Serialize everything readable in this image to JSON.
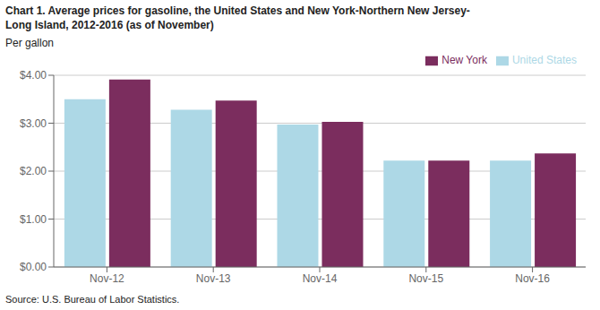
{
  "chart_data": {
    "type": "bar",
    "title": "Chart 1. Average prices for gasoline, the United States and New York-Northern New Jersey-\nLong Island, 2012-2016 (as of November)",
    "ylabel": "Per gallon",
    "annotations": [
      "Source: U.S. Bureau of Labor Statistics."
    ],
    "categories": [
      "Nov-12",
      "Nov-13",
      "Nov-14",
      "Nov-15",
      "Nov-16"
    ],
    "series": [
      {
        "name": "United States",
        "color": "#ADD8E6",
        "values": [
          3.5,
          3.28,
          2.97,
          2.22,
          2.22
        ]
      },
      {
        "name": "New York",
        "color": "#7B2D5E",
        "values": [
          3.91,
          3.47,
          3.03,
          2.22,
          2.37
        ]
      }
    ],
    "ylim": [
      0,
      4.0
    ],
    "yticks": [
      {
        "value": 0.0,
        "label": "$0.00"
      },
      {
        "value": 1.0,
        "label": "$1.00"
      },
      {
        "value": 2.0,
        "label": "$2.00"
      },
      {
        "value": 3.0,
        "label": "$3.00"
      },
      {
        "value": 4.0,
        "label": "$4.00"
      }
    ],
    "grid": true,
    "legend": "upper right"
  }
}
